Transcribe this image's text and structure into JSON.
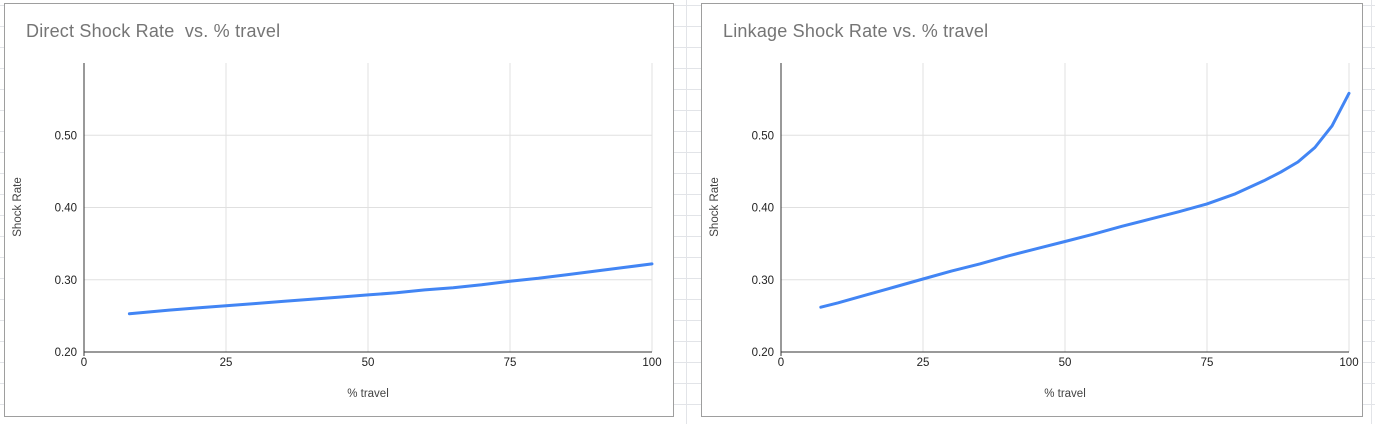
{
  "colors": {
    "series_line": "#4285f4",
    "chart_title_text": "#757575",
    "axis_title_text": "#424242",
    "tick_text": "#222222",
    "plot_gridline": "#e0e0e0",
    "axis_line": "#333333",
    "card_border": "#9e9e9e",
    "sheet_gridline": "#e2e4e8"
  },
  "chart_data": [
    {
      "type": "line",
      "title": "Direct Shock Rate  vs. % travel",
      "xlabel": "% travel",
      "ylabel": "Shock Rate",
      "xlim": [
        0,
        100
      ],
      "ylim": [
        0.2,
        0.6
      ],
      "xticks": [
        0,
        25,
        50,
        75,
        100
      ],
      "xtick_labels": [
        "0",
        "25",
        "50",
        "75",
        "100"
      ],
      "yticks": [
        0.2,
        0.3,
        0.4,
        0.5
      ],
      "ytick_labels": [
        "0.20",
        "0.30",
        "0.40",
        "0.50"
      ],
      "grid": true,
      "legend": "none",
      "series": [
        {
          "name": "Direct Shock Rate",
          "x": [
            8,
            15,
            20,
            25,
            30,
            35,
            40,
            45,
            50,
            55,
            60,
            65,
            70,
            75,
            80,
            85,
            90,
            95,
            100
          ],
          "y": [
            0.253,
            0.258,
            0.261,
            0.264,
            0.267,
            0.27,
            0.273,
            0.276,
            0.279,
            0.282,
            0.286,
            0.289,
            0.293,
            0.298,
            0.302,
            0.307,
            0.312,
            0.317,
            0.322
          ]
        }
      ]
    },
    {
      "type": "line",
      "title": "Linkage Shock Rate vs. % travel",
      "xlabel": "% travel",
      "ylabel": "Shock Rate",
      "xlim": [
        0,
        100
      ],
      "ylim": [
        0.2,
        0.6
      ],
      "xticks": [
        0,
        25,
        50,
        75,
        100
      ],
      "xtick_labels": [
        "0",
        "25",
        "50",
        "75",
        "100"
      ],
      "yticks": [
        0.2,
        0.3,
        0.4,
        0.5
      ],
      "ytick_labels": [
        "0.20",
        "0.30",
        "0.40",
        "0.50"
      ],
      "grid": true,
      "legend": "none",
      "series": [
        {
          "name": "Linkage Shock Rate",
          "x": [
            7,
            10,
            15,
            20,
            25,
            30,
            35,
            40,
            45,
            50,
            55,
            60,
            65,
            70,
            75,
            80,
            85,
            88,
            91,
            94,
            97,
            100
          ],
          "y": [
            0.262,
            0.268,
            0.279,
            0.29,
            0.301,
            0.312,
            0.322,
            0.333,
            0.343,
            0.353,
            0.363,
            0.374,
            0.384,
            0.394,
            0.405,
            0.419,
            0.437,
            0.449,
            0.463,
            0.483,
            0.513,
            0.558
          ]
        }
      ]
    }
  ]
}
